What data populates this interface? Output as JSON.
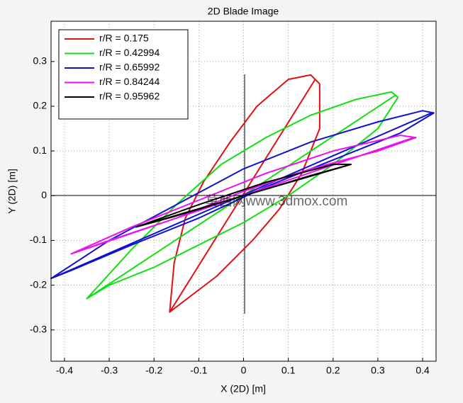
{
  "chart_data": {
    "type": "line",
    "title": "2D Blade Image",
    "xlabel": "X (2D) [m]",
    "ylabel": "Y (2D) [m]",
    "watermark": "莫西网www.3dmox.com",
    "xlim": [
      -0.43,
      0.43
    ],
    "ylim": [
      -0.37,
      0.39
    ],
    "xticks": [
      -0.4,
      -0.3,
      -0.2,
      -0.1,
      0,
      0.1,
      0.2,
      0.3,
      0.4
    ],
    "yticks": [
      -0.3,
      -0.2,
      -0.1,
      0,
      0.1,
      0.2,
      0.3
    ],
    "grid": true,
    "legend": "top-left",
    "series": [
      {
        "name": "r/R = 0.175",
        "color": "#e01010",
        "x": [
          -0.165,
          -0.155,
          -0.13,
          -0.09,
          -0.03,
          0.03,
          0.1,
          0.15,
          0.17,
          0.17,
          0.13,
          0.08,
          0.02,
          -0.06,
          -0.165,
          0.16
        ],
        "values": [
          -0.26,
          -0.15,
          -0.05,
          0.03,
          0.12,
          0.2,
          0.26,
          0.27,
          0.25,
          0.15,
          0.05,
          -0.03,
          -0.1,
          -0.18,
          -0.26,
          0.26
        ]
      },
      {
        "name": "r/R = 0.42994",
        "color": "#10e010",
        "x": [
          -0.35,
          -0.25,
          -0.15,
          -0.05,
          0.05,
          0.15,
          0.25,
          0.33,
          0.345,
          0.3,
          0.2,
          0.1,
          0,
          -0.1,
          -0.2,
          -0.3,
          -0.35,
          0.34
        ],
        "values": [
          -0.23,
          -0.12,
          -0.02,
          0.07,
          0.13,
          0.18,
          0.215,
          0.232,
          0.22,
          0.15,
          0.07,
          0,
          -0.06,
          -0.11,
          -0.16,
          -0.2,
          -0.23,
          0.225
        ]
      },
      {
        "name": "r/R = 0.65992",
        "color": "#1010d0",
        "x": [
          -0.43,
          -0.3,
          -0.15,
          0,
          0.15,
          0.3,
          0.4,
          0.425,
          0.35,
          0.2,
          0.05,
          -0.1,
          -0.25,
          -0.38,
          -0.43,
          0.42
        ],
        "values": [
          -0.185,
          -0.1,
          -0.02,
          0.06,
          0.12,
          0.165,
          0.19,
          0.185,
          0.14,
          0.08,
          0.02,
          -0.05,
          -0.11,
          -0.165,
          -0.185,
          0.185
        ]
      },
      {
        "name": "r/R = 0.84244",
        "color": "#ee10ee",
        "x": [
          -0.385,
          -0.25,
          -0.1,
          0.05,
          0.2,
          0.35,
          0.385,
          0.3,
          0.15,
          0,
          -0.15,
          -0.3,
          -0.385,
          0.38
        ],
        "values": [
          -0.13,
          -0.07,
          -0.01,
          0.05,
          0.1,
          0.135,
          0.13,
          0.1,
          0.06,
          0.01,
          -0.05,
          -0.1,
          -0.13,
          0.13
        ]
      },
      {
        "name": "r/R = 0.95962",
        "color": "#000000",
        "x": [
          -0.24,
          -0.1,
          0.05,
          0.2,
          0.24,
          0.15,
          0,
          -0.15,
          -0.24,
          0.24
        ],
        "values": [
          -0.07,
          -0.02,
          0.03,
          0.07,
          0.07,
          0.045,
          0,
          -0.045,
          -0.07,
          0.07
        ]
      }
    ]
  }
}
